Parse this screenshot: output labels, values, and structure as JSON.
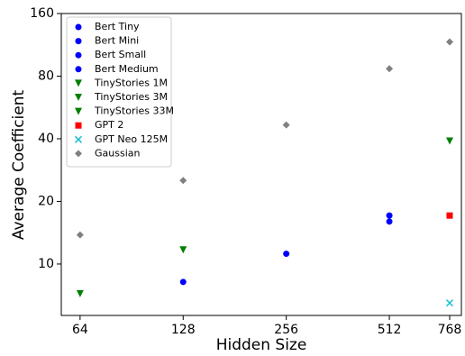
{
  "chart_data": {
    "type": "scatter",
    "x_label": "Hidden Size",
    "y_label": "Average Coefficient",
    "x_log": true,
    "y_log": true,
    "legend": "upper left",
    "xlim": [
      56.4,
      831
    ],
    "ylim": [
      5.66,
      160
    ],
    "xticks": [
      64,
      128,
      256,
      512,
      768
    ],
    "yticks": [
      10,
      20,
      40,
      80,
      160
    ],
    "series": [
      {
        "name": "Bert Tiny",
        "color": "#0000ff",
        "marker": "circle",
        "x": [
          128
        ],
        "y": [
          8.2
        ]
      },
      {
        "name": "Bert Mini",
        "color": "#0000ff",
        "marker": "circle",
        "x": [
          256
        ],
        "y": [
          11.2
        ]
      },
      {
        "name": "Bert Small",
        "color": "#0000ff",
        "marker": "circle",
        "x": [
          512
        ],
        "y": [
          16.0
        ]
      },
      {
        "name": "Bert Medium",
        "color": "#0000ff",
        "marker": "circle",
        "x": [
          512
        ],
        "y": [
          17.1
        ]
      },
      {
        "name": "TinyStories 1M",
        "color": "#008000",
        "marker": "triangle-down",
        "x": [
          64
        ],
        "y": [
          7.2
        ]
      },
      {
        "name": "TinyStories 3M",
        "color": "#008000",
        "marker": "triangle-down",
        "x": [
          128
        ],
        "y": [
          11.7
        ]
      },
      {
        "name": "TinyStories 33M",
        "color": "#008000",
        "marker": "triangle-down",
        "x": [
          768
        ],
        "y": [
          39.0
        ]
      },
      {
        "name": "GPT 2",
        "color": "#ff0000",
        "marker": "square",
        "x": [
          768
        ],
        "y": [
          17.1
        ]
      },
      {
        "name": "GPT Neo 125M",
        "color": "#17becf",
        "marker": "x",
        "x": [
          768
        ],
        "y": [
          6.5
        ]
      },
      {
        "name": "Gaussian",
        "color": "#808080",
        "marker": "diamond",
        "x": [
          64,
          128,
          256,
          512,
          768
        ],
        "y": [
          13.8,
          25.2,
          46.6,
          86.9,
          116.8
        ]
      }
    ]
  }
}
